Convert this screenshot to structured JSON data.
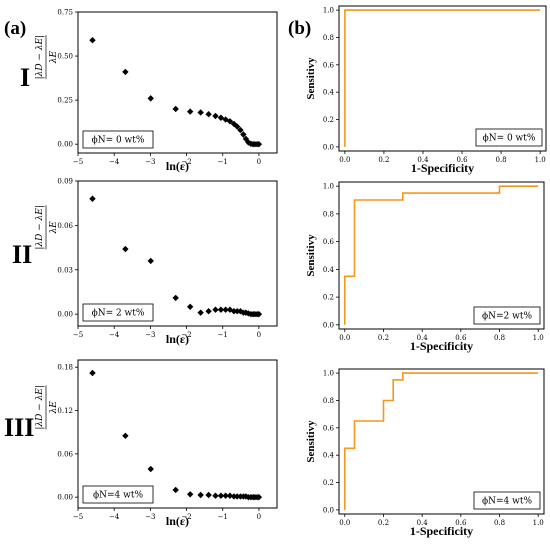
{
  "panel_labels": {
    "a": "(a)",
    "b": "(b)"
  },
  "row_labels": [
    "I",
    "II",
    "III"
  ],
  "style": {
    "marker_color": "#000000",
    "roc_color": "#f5961e"
  },
  "chart_data": [
    {
      "type": "scatter",
      "xlabel": "ln(ε)",
      "ylabel": "|λD − λE| / λE",
      "legend": "ϕN= 0 wt%",
      "legend_position": "bottom-left",
      "xlim": [
        -5,
        0.5
      ],
      "ylim": [
        -0.05,
        0.75
      ],
      "xticks": [
        -5,
        -4,
        -3,
        -2,
        -1,
        0
      ],
      "yticks": [
        0.0,
        0.25,
        0.5,
        0.75
      ],
      "ytick_labels": [
        "0.00",
        "0.25",
        "0.50",
        "0.75"
      ],
      "x": [
        -4.6,
        -3.69,
        -2.99,
        -2.3,
        -1.9,
        -1.61,
        -1.39,
        -1.2,
        -1.05,
        -0.92,
        -0.8,
        -0.69,
        -0.6,
        -0.51,
        -0.43,
        -0.36,
        -0.29,
        -0.22,
        -0.16,
        -0.11,
        -0.05,
        0
      ],
      "y": [
        0.59,
        0.41,
        0.26,
        0.2,
        0.185,
        0.18,
        0.17,
        0.16,
        0.15,
        0.14,
        0.13,
        0.115,
        0.1,
        0.08,
        0.055,
        0.03,
        0.01,
        0.002,
        0.0,
        0.0,
        0.0,
        0.0
      ]
    },
    {
      "type": "line",
      "xlabel": "1-Specificity",
      "ylabel": "Sensitivy",
      "legend": "ϕN= 0 wt%",
      "legend_position": "bottom-right",
      "xlim": [
        -0.03,
        1.03
      ],
      "ylim": [
        -0.03,
        1.03
      ],
      "xticks": [
        0.0,
        0.2,
        0.4,
        0.6,
        0.8,
        1.0
      ],
      "yticks": [
        0.0,
        0.2,
        0.4,
        0.6,
        0.8,
        1.0
      ],
      "xtick_labels": [
        "0.0",
        "0.2",
        "0.4",
        "0.6",
        "0.8",
        "1.0"
      ],
      "ytick_labels": [
        "0.0",
        "0.2",
        "0.4",
        "0.6",
        "0.8",
        "1.0"
      ],
      "x": [
        0.0,
        0.0,
        1.0
      ],
      "y": [
        0.0,
        1.0,
        1.0
      ]
    },
    {
      "type": "scatter",
      "xlabel": "ln(ε)",
      "ylabel": "|λD − λE| / λE",
      "legend": "ϕN= 2 wt%",
      "legend_position": "bottom-left",
      "xlim": [
        -5,
        0.5
      ],
      "ylim": [
        -0.008,
        0.09
      ],
      "xticks": [
        -5,
        -4,
        -3,
        -2,
        -1,
        0
      ],
      "yticks": [
        0.0,
        0.03,
        0.06,
        0.09
      ],
      "ytick_labels": [
        "0.00",
        "0.03",
        "0.06",
        "0.09"
      ],
      "x": [
        -4.6,
        -3.69,
        -2.99,
        -2.3,
        -1.9,
        -1.61,
        -1.39,
        -1.2,
        -1.05,
        -0.92,
        -0.8,
        -0.69,
        -0.6,
        -0.51,
        -0.43,
        -0.36,
        -0.29,
        -0.22,
        -0.16,
        -0.11,
        -0.05,
        0
      ],
      "y": [
        0.078,
        0.044,
        0.036,
        0.011,
        0.005,
        0.001,
        0.002,
        0.003,
        0.003,
        0.003,
        0.003,
        0.002,
        0.002,
        0.002,
        0.001,
        0.001,
        0.0005,
        0.0,
        0.0,
        0.0,
        0.0,
        0.0
      ]
    },
    {
      "type": "line",
      "xlabel": "1-Specificity",
      "ylabel": "Sensitivy",
      "legend": "ϕN=2 wt%",
      "legend_position": "bottom-right",
      "xlim": [
        -0.03,
        1.03
      ],
      "ylim": [
        -0.03,
        1.03
      ],
      "xticks": [
        0.0,
        0.2,
        0.4,
        0.6,
        0.8,
        1.0
      ],
      "yticks": [
        0.0,
        0.2,
        0.4,
        0.6,
        0.8,
        1.0
      ],
      "xtick_labels": [
        "0.0",
        "0.2",
        "0.4",
        "0.6",
        "0.8",
        "1.0"
      ],
      "ytick_labels": [
        "0.0",
        "0.2",
        "0.4",
        "0.6",
        "0.8",
        "1.0"
      ],
      "x": [
        0.0,
        0.0,
        0.05,
        0.05,
        0.3,
        0.3,
        0.8,
        0.8,
        1.0
      ],
      "y": [
        0.0,
        0.35,
        0.35,
        0.9,
        0.9,
        0.95,
        0.95,
        1.0,
        1.0
      ]
    },
    {
      "type": "scatter",
      "xlabel": "ln(ε)",
      "ylabel": "|λD − λE| / λE",
      "legend": "ϕN=4 wt%",
      "legend_position": "bottom-left",
      "xlim": [
        -5,
        0.5
      ],
      "ylim": [
        -0.015,
        0.19
      ],
      "xticks": [
        -5,
        -4,
        -3,
        -2,
        -1,
        0
      ],
      "yticks": [
        0.0,
        0.06,
        0.12,
        0.18
      ],
      "ytick_labels": [
        "0.00",
        "0.06",
        "0.12",
        "0.18"
      ],
      "x": [
        -4.6,
        -3.69,
        -2.99,
        -2.3,
        -1.9,
        -1.61,
        -1.39,
        -1.2,
        -1.05,
        -0.92,
        -0.8,
        -0.69,
        -0.6,
        -0.51,
        -0.43,
        -0.36,
        -0.29,
        -0.22,
        -0.16,
        -0.11,
        -0.05,
        0
      ],
      "y": [
        0.172,
        0.085,
        0.039,
        0.01,
        0.004,
        0.003,
        0.003,
        0.002,
        0.002,
        0.002,
        0.002,
        0.001,
        0.001,
        0.001,
        0.001,
        0.001,
        0.0,
        0.0,
        0.0,
        0.0,
        0.0,
        0.0
      ]
    },
    {
      "type": "line",
      "xlabel": "1-Specificity",
      "ylabel": "Sensitivy",
      "legend": "ϕN=4 wt%",
      "legend_position": "bottom-right",
      "xlim": [
        -0.03,
        1.03
      ],
      "ylim": [
        -0.03,
        1.03
      ],
      "xticks": [
        0.0,
        0.2,
        0.4,
        0.6,
        0.8,
        1.0
      ],
      "yticks": [
        0.0,
        0.2,
        0.4,
        0.6,
        0.8,
        1.0
      ],
      "xtick_labels": [
        "0.0",
        "0.2",
        "0.4",
        "0.6",
        "0.8",
        "1.0"
      ],
      "ytick_labels": [
        "0.0",
        "0.2",
        "0.4",
        "0.6",
        "0.8",
        "1.0"
      ],
      "x": [
        0.0,
        0.0,
        0.05,
        0.05,
        0.2,
        0.2,
        0.25,
        0.25,
        0.3,
        0.3,
        1.0
      ],
      "y": [
        0.0,
        0.45,
        0.45,
        0.65,
        0.65,
        0.8,
        0.8,
        0.95,
        0.95,
        1.0,
        1.0
      ]
    }
  ]
}
